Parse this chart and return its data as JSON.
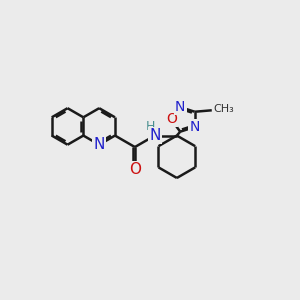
{
  "bg_color": "#ebebeb",
  "bond_color": "#1a1a1a",
  "bond_width": 1.8,
  "atom_colors": {
    "N": "#2020cc",
    "O": "#cc1010",
    "C": "#1a1a1a",
    "H": "#4a9090"
  },
  "font_size": 10,
  "fig_size": [
    3.0,
    3.0
  ],
  "dpi": 100
}
